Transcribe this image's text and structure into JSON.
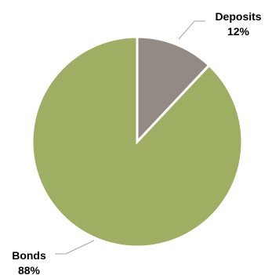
{
  "chart_data": {
    "type": "pie",
    "title": "",
    "legend": "none",
    "slices": [
      {
        "name": "Deposits",
        "value": 12,
        "label": "12%",
        "color": "#948a84"
      },
      {
        "name": "Bonds",
        "value": 88,
        "label": "88%",
        "color": "#9eae63"
      }
    ]
  }
}
